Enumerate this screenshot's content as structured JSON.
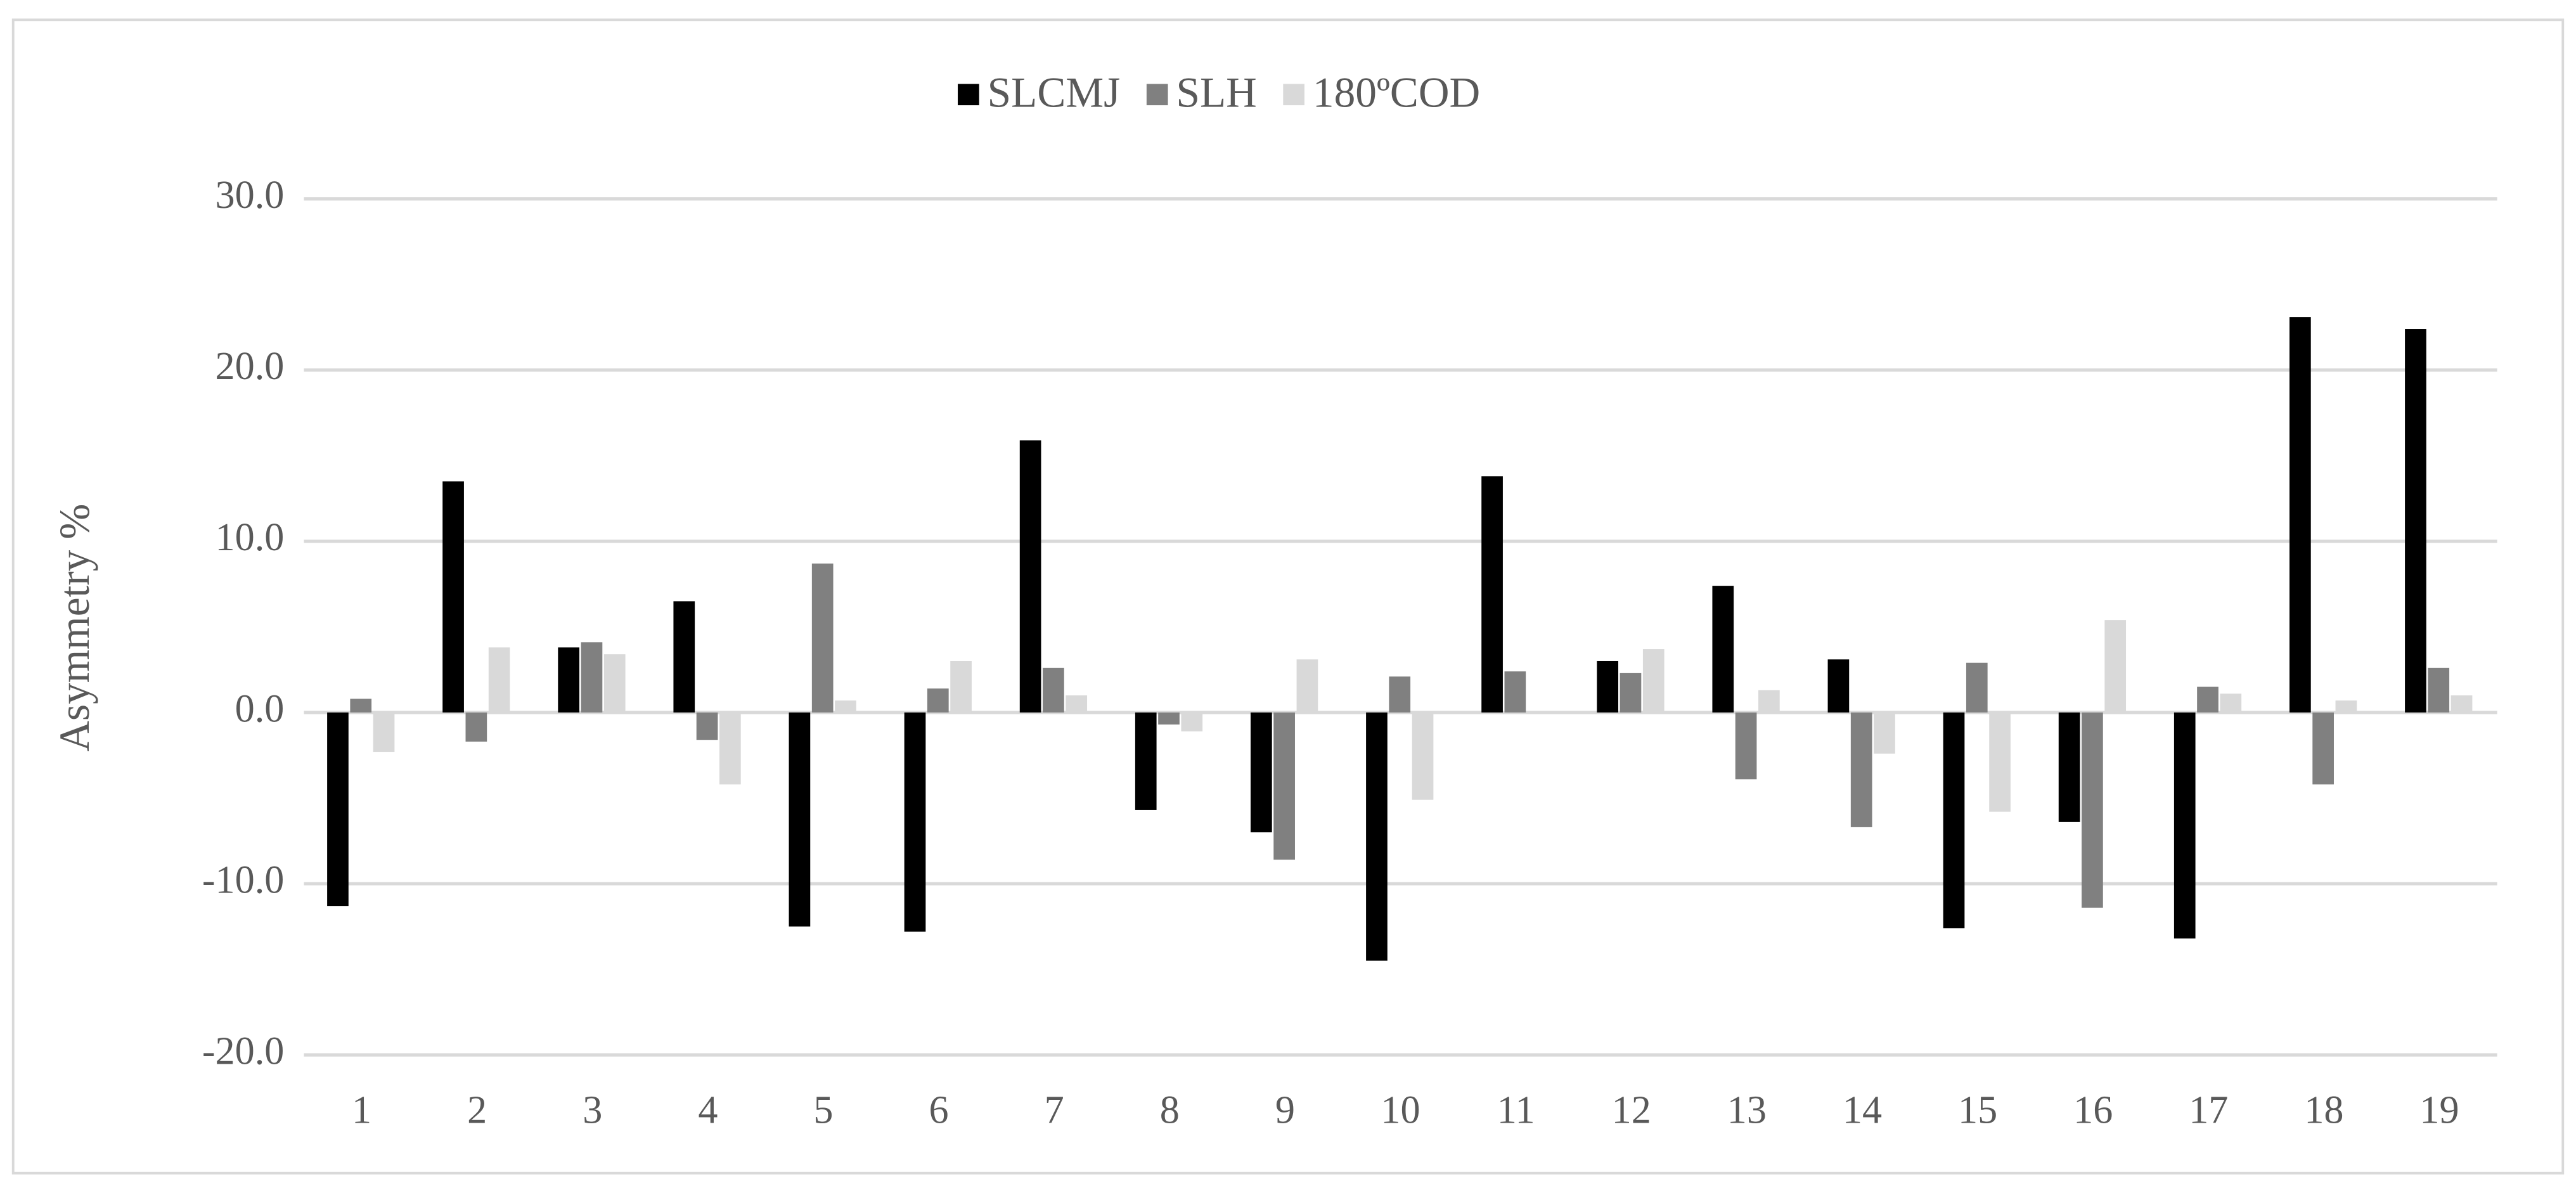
{
  "chart_data": {
    "type": "bar",
    "y_label": "Asymmetry %",
    "categories": [
      "1",
      "2",
      "3",
      "4",
      "5",
      "6",
      "7",
      "8",
      "9",
      "10",
      "11",
      "12",
      "13",
      "14",
      "15",
      "16",
      "17",
      "18",
      "19"
    ],
    "series": [
      {
        "name": "SLCMJ",
        "color": "#000000",
        "values": [
          -11.3,
          13.5,
          3.8,
          6.5,
          -12.5,
          -12.8,
          15.9,
          -5.7,
          -7.0,
          -14.5,
          13.8,
          3.0,
          7.4,
          3.1,
          -12.6,
          -6.4,
          -13.2,
          23.1,
          22.4
        ]
      },
      {
        "name": "SLH",
        "color": "#808080",
        "values": [
          0.8,
          -1.7,
          4.1,
          -1.6,
          8.7,
          1.4,
          2.6,
          -0.7,
          -8.6,
          2.1,
          2.4,
          2.3,
          -3.9,
          -6.7,
          2.9,
          -11.4,
          1.5,
          -4.2,
          2.6
        ]
      },
      {
        "name": "180ºCOD",
        "color": "#d9d9d9",
        "values": [
          -2.3,
          3.8,
          3.4,
          -4.2,
          0.7,
          3.0,
          1.0,
          -1.1,
          3.1,
          -5.1,
          0.0,
          3.7,
          1.3,
          -2.4,
          -5.8,
          5.4,
          1.1,
          0.7,
          1.0
        ]
      }
    ],
    "ylim": [
      -20,
      30
    ],
    "yticks": [
      {
        "value": -20,
        "label": "-20.0"
      },
      {
        "value": -10,
        "label": "-10.0"
      },
      {
        "value": 0,
        "label": "0.0"
      },
      {
        "value": 10,
        "label": "10.0"
      },
      {
        "value": 20,
        "label": "20.0"
      },
      {
        "value": 30,
        "label": "30.0"
      }
    ],
    "grid": true,
    "legend": "top"
  }
}
